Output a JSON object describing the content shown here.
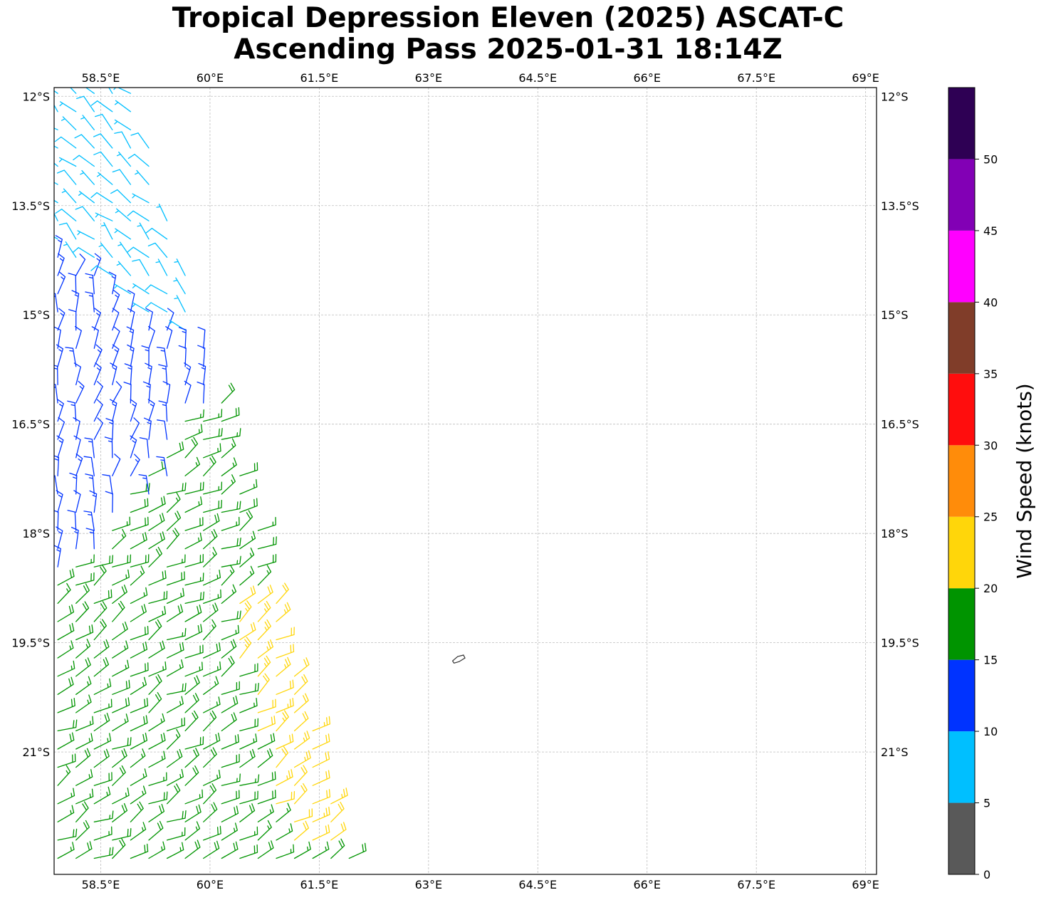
{
  "title": {
    "line1": "Tropical Depression Eleven (2025) ASCAT-C",
    "line2": "Ascending Pass 2025-01-31 18:14Z"
  },
  "map": {
    "lon_range": [
      57.86,
      69.15
    ],
    "lat_range": [
      -22.68,
      -11.88
    ],
    "lon_ticks": [
      {
        "value": 58.5,
        "label": "58.5°E"
      },
      {
        "value": 60,
        "label": "60°E"
      },
      {
        "value": 61.5,
        "label": "61.5°E"
      },
      {
        "value": 63,
        "label": "63°E"
      },
      {
        "value": 64.5,
        "label": "64.5°E"
      },
      {
        "value": 66,
        "label": "66°E"
      },
      {
        "value": 67.5,
        "label": "67.5°E"
      },
      {
        "value": 69,
        "label": "69°E"
      }
    ],
    "lat_ticks": [
      {
        "value": -12,
        "label": "12°S"
      },
      {
        "value": -13.5,
        "label": "13.5°S"
      },
      {
        "value": -15,
        "label": "15°S"
      },
      {
        "value": -16.5,
        "label": "16.5°S"
      },
      {
        "value": -18,
        "label": "18°S"
      },
      {
        "value": -19.5,
        "label": "19.5°S"
      },
      {
        "value": -21,
        "label": "21°S"
      }
    ],
    "gridlines": true,
    "coastline": {
      "name": "island",
      "points": [
        [
          63.33,
          -19.75
        ],
        [
          63.4,
          -19.69
        ],
        [
          63.48,
          -19.67
        ],
        [
          63.5,
          -19.71
        ],
        [
          63.42,
          -19.76
        ],
        [
          63.35,
          -19.78
        ]
      ]
    }
  },
  "colorbar": {
    "label": "Wind Speed (knots)",
    "bounds": [
      0,
      5,
      10,
      15,
      20,
      25,
      30,
      35,
      40,
      45,
      50,
      55
    ],
    "tick_labels": [
      "0",
      "5",
      "10",
      "15",
      "20",
      "25",
      "30",
      "35",
      "40",
      "45",
      "50"
    ],
    "colors": [
      "#595959",
      "#00bfff",
      "#0033ff",
      "#009400",
      "#ffd60a",
      "#ff8c0a",
      "#ff0d0d",
      "#803d29",
      "#ff00ff",
      "#8200b5",
      "#2e0054"
    ]
  },
  "chart_data": {
    "type": "wind_barbs",
    "swath": {
      "corners": [
        [
          57.86,
          -11.9
        ],
        [
          58.95,
          -11.9
        ],
        [
          62.0,
          -22.68
        ],
        [
          57.86,
          -22.68
        ]
      ]
    },
    "zones": [
      {
        "lat_from": -11.88,
        "lat_to": -15.2,
        "speed_knots": 7,
        "direction_from_deg": 315,
        "color": "#00bfff"
      },
      {
        "lat_from": -14.4,
        "lat_to": -19.2,
        "speed_knots": 13,
        "direction_from_deg": 10,
        "color": "#0033ff"
      },
      {
        "lat_from": -17.2,
        "lat_to": -22.68,
        "speed_knots": 18,
        "direction_from_deg": 60,
        "color": "#009400"
      },
      {
        "lat_from": -18.9,
        "lat_to": -22.3,
        "speed_knots": 22,
        "direction_from_deg": 55,
        "color": "#ffd60a"
      }
    ]
  }
}
